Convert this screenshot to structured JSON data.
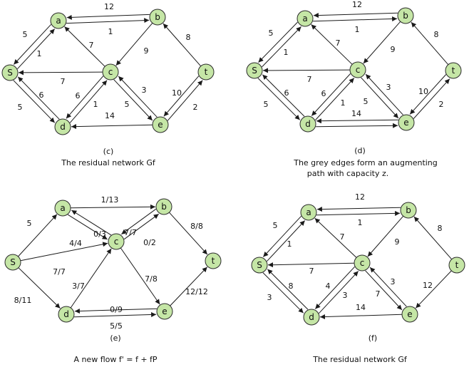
{
  "colors": {
    "node_fill": "#c5e6a6",
    "node_stroke": "#2b2b2b",
    "edge": "#1a1a1a"
  },
  "panels": [
    {
      "id": "c",
      "tag": "(c)",
      "caption": [
        "The residual network Gf"
      ],
      "nodes": {
        "a": "a",
        "b": "b",
        "s": "S",
        "c": "c",
        "t": "t",
        "d": "d",
        "e": "e"
      },
      "edges": [
        {
          "from": "a",
          "to": "b",
          "label": "12"
        },
        {
          "from": "b",
          "to": "a",
          "label": "1"
        },
        {
          "from": "s",
          "to": "a",
          "label": "5"
        },
        {
          "from": "a",
          "to": "s",
          "label": "1"
        },
        {
          "from": "c",
          "to": "a",
          "label": "7"
        },
        {
          "from": "b",
          "to": "c",
          "label": "9"
        },
        {
          "from": "c",
          "to": "s",
          "label": "7"
        },
        {
          "from": "t",
          "to": "b",
          "label": "8"
        },
        {
          "from": "d",
          "to": "s",
          "label": "6"
        },
        {
          "from": "s",
          "to": "d",
          "label": "5"
        },
        {
          "from": "d",
          "to": "c",
          "label": "6"
        },
        {
          "from": "c",
          "to": "d",
          "label": "1"
        },
        {
          "from": "c",
          "to": "e",
          "label": "3"
        },
        {
          "from": "e",
          "to": "c",
          "label": "5"
        },
        {
          "from": "t",
          "to": "e",
          "label": "10"
        },
        {
          "from": "e",
          "to": "t",
          "label": "2"
        },
        {
          "from": "e",
          "to": "d",
          "label": "14"
        }
      ]
    },
    {
      "id": "d",
      "tag": "(d)",
      "caption": [
        "The grey edges form an augmenting",
        "path with capacity z."
      ],
      "nodes": {
        "a": "a",
        "b": "b",
        "s": "S",
        "c": "c",
        "t": "t",
        "d": "d",
        "e": "e"
      },
      "edges": [
        {
          "from": "a",
          "to": "b",
          "label": "12"
        },
        {
          "from": "b",
          "to": "a",
          "label": "1"
        },
        {
          "from": "s",
          "to": "a",
          "label": "5"
        },
        {
          "from": "a",
          "to": "s",
          "label": "1"
        },
        {
          "from": "c",
          "to": "a",
          "label": "7"
        },
        {
          "from": "b",
          "to": "c",
          "label": "9"
        },
        {
          "from": "c",
          "to": "s",
          "label": "7"
        },
        {
          "from": "t",
          "to": "b",
          "label": "8"
        },
        {
          "from": "d",
          "to": "s",
          "label": "6"
        },
        {
          "from": "s",
          "to": "d",
          "label": "5"
        },
        {
          "from": "d",
          "to": "c",
          "label": "6"
        },
        {
          "from": "c",
          "to": "d",
          "label": "1"
        },
        {
          "from": "c",
          "to": "e",
          "label": "3"
        },
        {
          "from": "e",
          "to": "c",
          "label": "5"
        },
        {
          "from": "t",
          "to": "e",
          "label": "10"
        },
        {
          "from": "e",
          "to": "t",
          "label": "2"
        },
        {
          "from": "e",
          "to": "d",
          "label": "14"
        },
        {
          "from": "d",
          "to": "e",
          "label": ""
        }
      ]
    },
    {
      "id": "e",
      "tag": "(e)",
      "caption": [
        "A new flow f' = f + fP"
      ],
      "nodes": {
        "a": "a",
        "b": "b",
        "s": "S",
        "c": "c",
        "t": "t",
        "d": "d",
        "e": "e"
      },
      "edges": [
        {
          "from": "a",
          "to": "b",
          "label": "1/13"
        },
        {
          "from": "s",
          "to": "a",
          "label": "5"
        },
        {
          "from": "s",
          "to": "c",
          "label": "7/7"
        },
        {
          "from": "s",
          "to": "d",
          "label": "8/11"
        },
        {
          "from": "a",
          "to": "c",
          "label": "0/3"
        },
        {
          "from": "c",
          "to": "a",
          "label": "4/4"
        },
        {
          "from": "c",
          "to": "b",
          "label": "7/7"
        },
        {
          "from": "b",
          "to": "c",
          "label": "0/2"
        },
        {
          "from": "b",
          "to": "t",
          "label": "8/8"
        },
        {
          "from": "d",
          "to": "c",
          "label": "3/7"
        },
        {
          "from": "c",
          "to": "e",
          "label": "7/8"
        },
        {
          "from": "e",
          "to": "t",
          "label": "12/12"
        },
        {
          "from": "e",
          "to": "d",
          "label": "0/9"
        },
        {
          "from": "d",
          "to": "e",
          "label": "5/5"
        }
      ]
    },
    {
      "id": "f",
      "tag": "(f)",
      "caption": [
        "The residual network Gf"
      ],
      "nodes": {
        "a": "a",
        "b": "b",
        "s": "S",
        "c": "c",
        "t": "t",
        "d": "d",
        "e": "e"
      },
      "edges": [
        {
          "from": "a",
          "to": "b",
          "label": "12"
        },
        {
          "from": "b",
          "to": "a",
          "label": "1"
        },
        {
          "from": "s",
          "to": "a",
          "label": "5"
        },
        {
          "from": "a",
          "to": "s",
          "label": "1"
        },
        {
          "from": "c",
          "to": "a",
          "label": "7"
        },
        {
          "from": "b",
          "to": "c",
          "label": "9"
        },
        {
          "from": "c",
          "to": "s",
          "label": "7"
        },
        {
          "from": "t",
          "to": "b",
          "label": "8"
        },
        {
          "from": "d",
          "to": "s",
          "label": "8"
        },
        {
          "from": "s",
          "to": "d",
          "label": "3"
        },
        {
          "from": "d",
          "to": "c",
          "label": "4"
        },
        {
          "from": "c",
          "to": "d",
          "label": "3"
        },
        {
          "from": "c",
          "to": "e",
          "label": "3"
        },
        {
          "from": "e",
          "to": "c",
          "label": "7"
        },
        {
          "from": "t",
          "to": "e",
          "label": "12"
        },
        {
          "from": "e",
          "to": "d",
          "label": "14"
        }
      ]
    }
  ]
}
